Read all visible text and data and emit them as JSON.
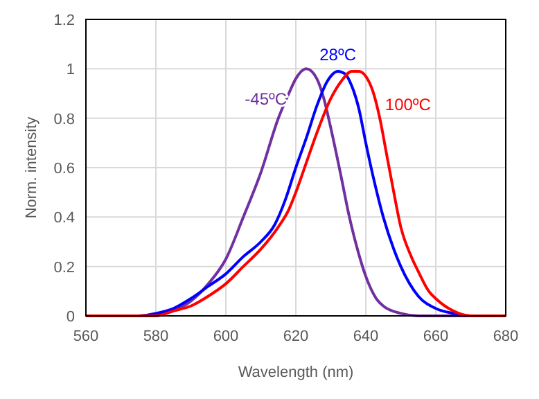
{
  "chart_data": {
    "type": "line",
    "xlabel": "Wavelength (nm)",
    "ylabel": "Norm. intensity",
    "xlim": [
      560,
      680
    ],
    "xticks": [
      560,
      580,
      600,
      620,
      640,
      660,
      680
    ],
    "ylim": [
      0,
      1.2
    ],
    "yticks": [
      0,
      0.2,
      0.4,
      0.6,
      0.8,
      1,
      1.2
    ],
    "grid": true,
    "marker": "none",
    "line_style": "solid",
    "series": [
      {
        "name": "-45ºC",
        "color": "#7030a0",
        "x": [
          560,
          575,
          580,
          585,
          590,
          595,
          600,
          605,
          610,
          615,
          618,
          620,
          623,
          626,
          628,
          630,
          633,
          635,
          638,
          640,
          643,
          645,
          650,
          655,
          660,
          680
        ],
        "values": [
          0,
          0,
          0.005,
          0.02,
          0.06,
          0.13,
          0.23,
          0.4,
          0.58,
          0.8,
          0.9,
          0.96,
          1,
          0.96,
          0.88,
          0.76,
          0.56,
          0.42,
          0.25,
          0.16,
          0.07,
          0.04,
          0.01,
          0,
          0,
          0
        ]
      },
      {
        "name": "28ºC",
        "color": "#0000ff",
        "x": [
          560,
          575,
          580,
          585,
          590,
          595,
          600,
          605,
          610,
          614,
          617,
          620,
          623,
          626,
          629,
          632,
          634,
          636,
          638,
          640,
          642,
          645,
          648,
          650,
          655,
          660,
          665,
          670,
          680
        ],
        "values": [
          0,
          0,
          0.01,
          0.03,
          0.07,
          0.12,
          0.17,
          0.24,
          0.3,
          0.37,
          0.47,
          0.6,
          0.72,
          0.85,
          0.95,
          0.99,
          0.98,
          0.93,
          0.84,
          0.7,
          0.57,
          0.4,
          0.27,
          0.2,
          0.08,
          0.03,
          0.01,
          0,
          0
        ]
      },
      {
        "name": "100ºC",
        "color": "#ff0000",
        "x": [
          560,
          580,
          585,
          590,
          595,
          600,
          605,
          610,
          615,
          618,
          620,
          623,
          626,
          630,
          633,
          636,
          638,
          640,
          642,
          644,
          646,
          648,
          650,
          653,
          655,
          658,
          660,
          665,
          670,
          680
        ],
        "values": [
          0,
          0,
          0.02,
          0.04,
          0.08,
          0.13,
          0.2,
          0.27,
          0.36,
          0.43,
          0.5,
          0.62,
          0.74,
          0.88,
          0.95,
          0.99,
          0.99,
          0.97,
          0.91,
          0.8,
          0.65,
          0.5,
          0.36,
          0.24,
          0.18,
          0.1,
          0.07,
          0.02,
          0,
          0
        ]
      }
    ]
  }
}
